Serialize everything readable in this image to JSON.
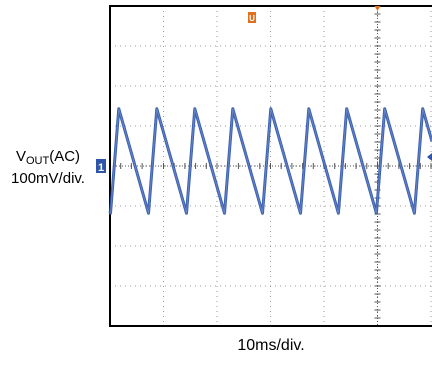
{
  "chart_data": {
    "type": "line",
    "title": "",
    "ylabel": {
      "main": "V",
      "sub": "OUT",
      "suffix": "(AC)",
      "scale": "100mV/div."
    },
    "xlabel": "10ms/div.",
    "divisions": {
      "x": 10,
      "y": 8
    },
    "xlim_div": [
      0,
      10
    ],
    "ylim_div": [
      -4,
      4
    ],
    "channel_marker": "1",
    "trigger_marker": "U",
    "grid": true,
    "colors": {
      "trace": "#2f55a8",
      "grid": "#9a9a9a",
      "frame": "#000000",
      "trigger": "#e07020"
    },
    "series": [
      {
        "waveform": "sawtooth",
        "period_ms": 7.1,
        "phase_ms": 0.1,
        "peak_v": 0.143,
        "trough_v": -0.118,
        "rise_ms": 1.55
      }
    ]
  }
}
